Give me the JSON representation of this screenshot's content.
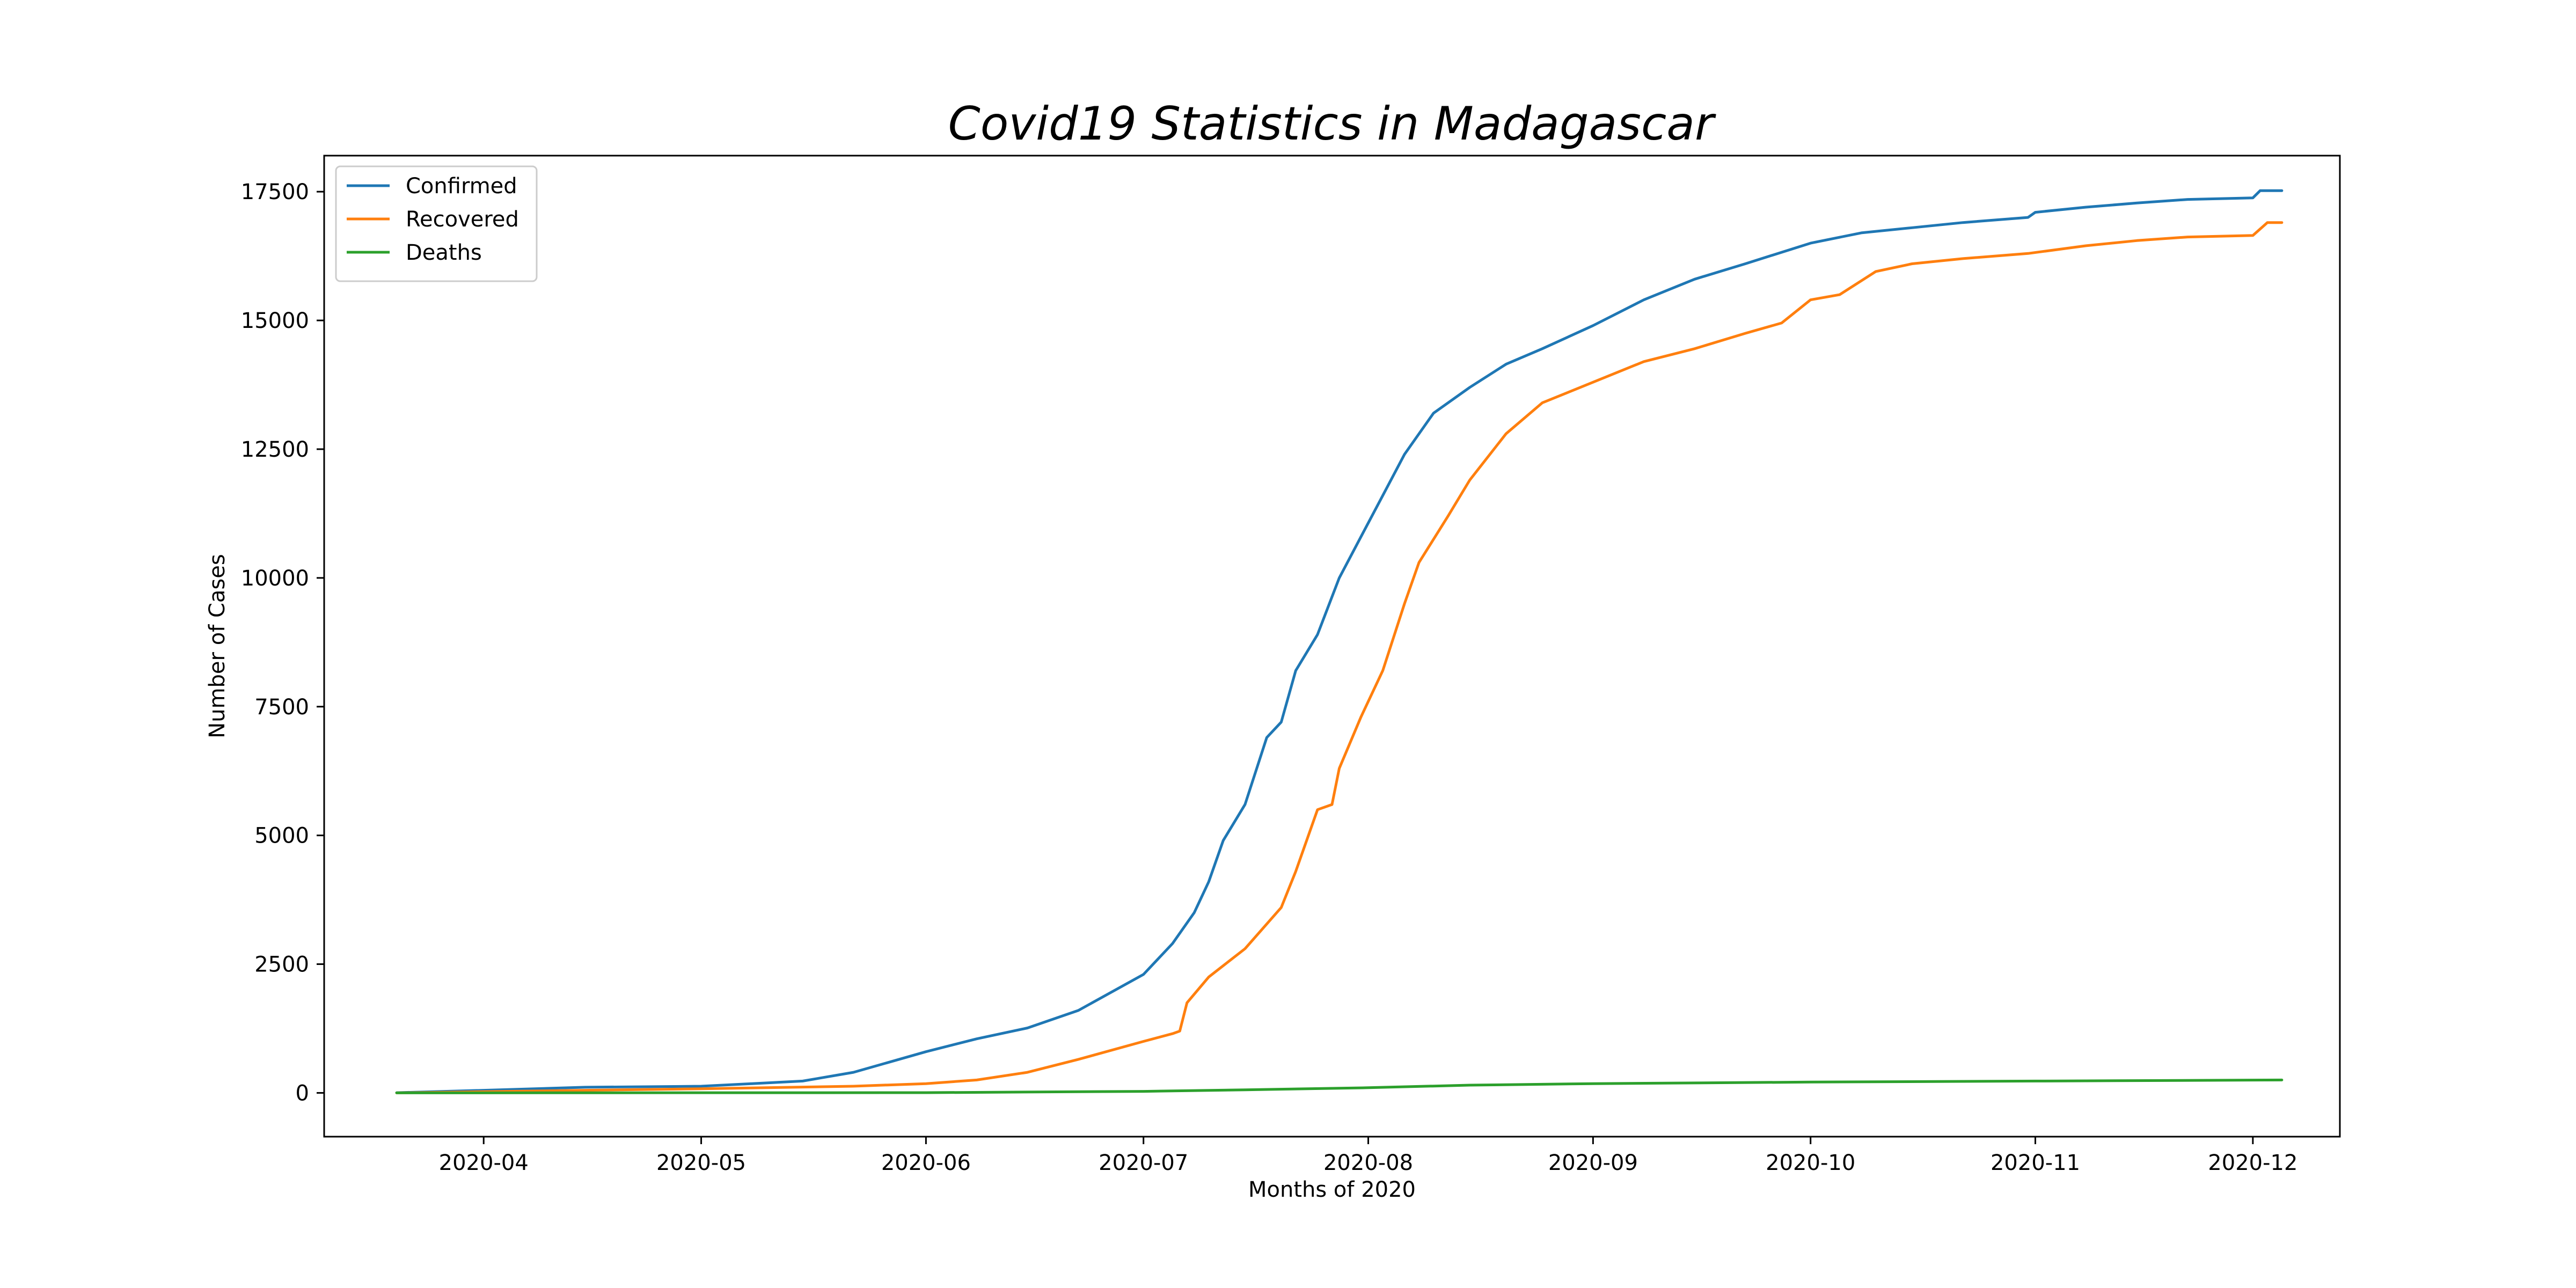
{
  "chart_data": {
    "type": "line",
    "title": "Covid19 Statistics in Madagascar",
    "xlabel": "Months of 2020",
    "ylabel": "Number of Cases",
    "xlim": [
      "2020-03-10",
      "2020-12-13"
    ],
    "ylim": [
      -850,
      18200
    ],
    "x_ticks": [
      "2020-04",
      "2020-05",
      "2020-06",
      "2020-07",
      "2020-08",
      "2020-09",
      "2020-10",
      "2020-11",
      "2020-12"
    ],
    "x_tick_dates": [
      "2020-04-01",
      "2020-05-01",
      "2020-06-01",
      "2020-07-01",
      "2020-08-01",
      "2020-09-01",
      "2020-10-01",
      "2020-11-01",
      "2020-12-01"
    ],
    "y_ticks": [
      0,
      2500,
      5000,
      7500,
      10000,
      12500,
      15000,
      17500
    ],
    "grid": false,
    "legend_position": "upper-left",
    "series": [
      {
        "name": "Confirmed",
        "color": "#1f77b4",
        "points": [
          [
            "2020-03-20",
            3
          ],
          [
            "2020-04-01",
            50
          ],
          [
            "2020-04-15",
            110
          ],
          [
            "2020-05-01",
            130
          ],
          [
            "2020-05-08",
            180
          ],
          [
            "2020-05-15",
            230
          ],
          [
            "2020-05-22",
            400
          ],
          [
            "2020-06-01",
            800
          ],
          [
            "2020-06-08",
            1050
          ],
          [
            "2020-06-15",
            1260
          ],
          [
            "2020-06-22",
            1600
          ],
          [
            "2020-07-01",
            2300
          ],
          [
            "2020-07-05",
            2900
          ],
          [
            "2020-07-08",
            3500
          ],
          [
            "2020-07-10",
            4100
          ],
          [
            "2020-07-12",
            4900
          ],
          [
            "2020-07-15",
            5600
          ],
          [
            "2020-07-18",
            6900
          ],
          [
            "2020-07-20",
            7200
          ],
          [
            "2020-07-22",
            8200
          ],
          [
            "2020-07-25",
            8900
          ],
          [
            "2020-07-28",
            10000
          ],
          [
            "2020-07-31",
            10800
          ],
          [
            "2020-08-03",
            11600
          ],
          [
            "2020-08-06",
            12400
          ],
          [
            "2020-08-10",
            13200
          ],
          [
            "2020-08-15",
            13700
          ],
          [
            "2020-08-20",
            14150
          ],
          [
            "2020-08-25",
            14450
          ],
          [
            "2020-09-01",
            14900
          ],
          [
            "2020-09-08",
            15400
          ],
          [
            "2020-09-15",
            15800
          ],
          [
            "2020-09-22",
            16100
          ],
          [
            "2020-10-01",
            16500
          ],
          [
            "2020-10-08",
            16700
          ],
          [
            "2020-10-15",
            16800
          ],
          [
            "2020-10-22",
            16900
          ],
          [
            "2020-10-31",
            17000
          ],
          [
            "2020-11-01",
            17100
          ],
          [
            "2020-11-08",
            17200
          ],
          [
            "2020-11-15",
            17280
          ],
          [
            "2020-11-22",
            17350
          ],
          [
            "2020-12-01",
            17380
          ],
          [
            "2020-12-02",
            17520
          ],
          [
            "2020-12-05",
            17520
          ]
        ]
      },
      {
        "name": "Recovered",
        "color": "#ff7f0e",
        "points": [
          [
            "2020-03-20",
            0
          ],
          [
            "2020-04-15",
            50
          ],
          [
            "2020-05-01",
            80
          ],
          [
            "2020-05-22",
            130
          ],
          [
            "2020-06-01",
            180
          ],
          [
            "2020-06-08",
            250
          ],
          [
            "2020-06-15",
            400
          ],
          [
            "2020-06-22",
            650
          ],
          [
            "2020-07-01",
            1000
          ],
          [
            "2020-07-05",
            1150
          ],
          [
            "2020-07-06",
            1200
          ],
          [
            "2020-07-07",
            1750
          ],
          [
            "2020-07-10",
            2250
          ],
          [
            "2020-07-15",
            2800
          ],
          [
            "2020-07-20",
            3600
          ],
          [
            "2020-07-22",
            4300
          ],
          [
            "2020-07-25",
            5500
          ],
          [
            "2020-07-27",
            5600
          ],
          [
            "2020-07-28",
            6300
          ],
          [
            "2020-07-31",
            7300
          ],
          [
            "2020-08-03",
            8200
          ],
          [
            "2020-08-06",
            9500
          ],
          [
            "2020-08-08",
            10300
          ],
          [
            "2020-08-12",
            11200
          ],
          [
            "2020-08-15",
            11900
          ],
          [
            "2020-08-20",
            12800
          ],
          [
            "2020-08-25",
            13400
          ],
          [
            "2020-09-01",
            13800
          ],
          [
            "2020-09-08",
            14200
          ],
          [
            "2020-09-15",
            14450
          ],
          [
            "2020-09-22",
            14750
          ],
          [
            "2020-09-27",
            14950
          ],
          [
            "2020-10-01",
            15400
          ],
          [
            "2020-10-05",
            15500
          ],
          [
            "2020-10-10",
            15950
          ],
          [
            "2020-10-15",
            16100
          ],
          [
            "2020-10-22",
            16200
          ],
          [
            "2020-10-31",
            16300
          ],
          [
            "2020-11-08",
            16450
          ],
          [
            "2020-11-15",
            16550
          ],
          [
            "2020-11-22",
            16620
          ],
          [
            "2020-12-01",
            16650
          ],
          [
            "2020-12-03",
            16900
          ],
          [
            "2020-12-05",
            16900
          ]
        ]
      },
      {
        "name": "Deaths",
        "color": "#2ca02c",
        "points": [
          [
            "2020-03-20",
            0
          ],
          [
            "2020-06-01",
            5
          ],
          [
            "2020-07-01",
            30
          ],
          [
            "2020-07-15",
            60
          ],
          [
            "2020-08-01",
            100
          ],
          [
            "2020-08-15",
            150
          ],
          [
            "2020-09-01",
            180
          ],
          [
            "2020-10-01",
            210
          ],
          [
            "2020-11-01",
            230
          ],
          [
            "2020-12-05",
            250
          ]
        ]
      }
    ]
  }
}
